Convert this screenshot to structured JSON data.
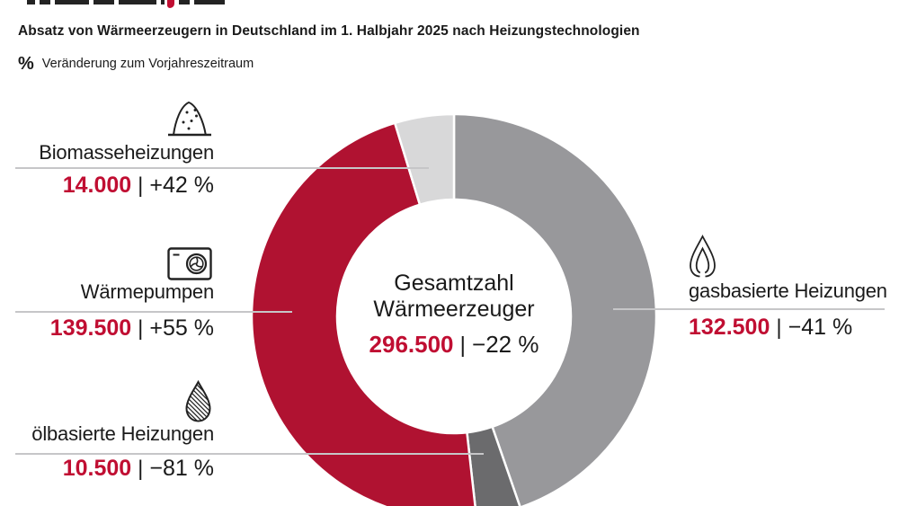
{
  "header": {
    "title": "Absatz von Wärmeerzeugern in Deutschland im 1. Halbjahr 2025 nach Heizungstechnologien",
    "unit_symbol": "%",
    "unit_note": "Veränderung zum Vorjahreszeitraum"
  },
  "center": {
    "line1": "Gesamtzahl",
    "line2": "Wärmeerzeuger",
    "value": "296.500",
    "change": "−22 %"
  },
  "ui": {
    "divider": "|"
  },
  "colors": {
    "accent_red_text": "#C00E32",
    "segment_red": "#B01231",
    "segment_gray": "#98989B",
    "segment_dark_gray": "#6B6B6D",
    "segment_light_gray": "#D8D8D9",
    "leader_line": "#C6C6C8",
    "text": "#1A1A1A"
  },
  "chart_data": {
    "type": "pie",
    "donut": true,
    "title": "Absatz von Wärmeerzeugern in Deutschland im 1. Halbjahr 2025 nach Heizungstechnologien",
    "subtitle": "% Veränderung zum Vorjahreszeitraum",
    "total_label": "Gesamtzahl Wärmeerzeuger",
    "total_value": 296500,
    "total_value_label": "296.500",
    "total_change_pct": -22,
    "start_angle_deg": 0,
    "direction": "clockwise",
    "legend_position": "callouts",
    "segments": [
      {
        "label": "gasbasierte Heizungen",
        "value": 132500,
        "value_label": "132.500",
        "change": "−41 %",
        "change_pct": -41,
        "color": "#98989B",
        "icon": "gas-flame-icon"
      },
      {
        "label": "ölbasierte Heizungen",
        "value": 10500,
        "value_label": "10.500",
        "change": "−81 %",
        "change_pct": -81,
        "color": "#6B6B6D",
        "icon": "oil-drop-icon"
      },
      {
        "label": "Wärmepumpen",
        "value": 139500,
        "value_label": "139.500",
        "change": "+55 %",
        "change_pct": 55,
        "color": "#B01231",
        "icon": "heat-pump-icon"
      },
      {
        "label": "Biomasseheizungen",
        "value": 14000,
        "value_label": "14.000",
        "change": "+42 %",
        "change_pct": 42,
        "color": "#D8D8D9",
        "icon": "biomass-pile-icon"
      }
    ]
  }
}
